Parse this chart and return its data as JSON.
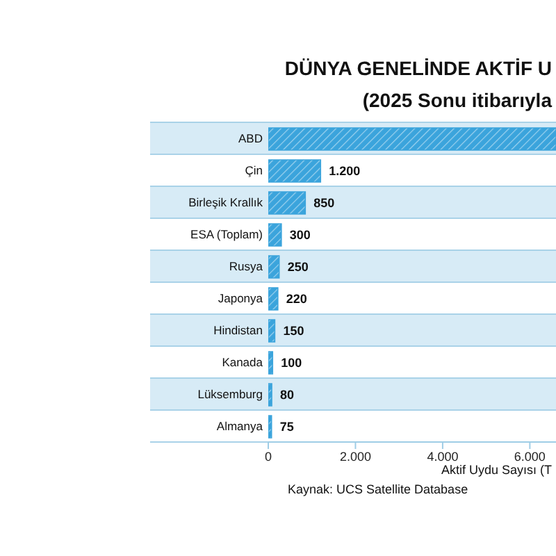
{
  "chart_data": {
    "type": "bar",
    "orientation": "horizontal",
    "title": "DÜNYA GENELİNDE AKTİF U",
    "subtitle": "(2025 Sonu itibarıyla",
    "xlabel": "Aktif Uydu Sayısı (T",
    "annotations": [
      "Kaynak: UCS Satellite Database"
    ],
    "categories": [
      "ABD",
      "Çin",
      "Birleşik Krallık",
      "ESA (Toplam)",
      "Rusya",
      "Japonya",
      "Hindistan",
      "Kanada",
      "Lüksemburg",
      "Almanya"
    ],
    "values": [
      6600,
      1200,
      850,
      300,
      250,
      220,
      150,
      100,
      80,
      75
    ],
    "value_labels": [
      null,
      "1.200",
      "850",
      "300",
      "250",
      "220",
      "150",
      "100",
      "80",
      "75"
    ],
    "color": "#3ba4dc",
    "xlim": [
      0,
      6600
    ],
    "xticks": [
      0,
      {
        "value": 2000,
        "label": "2.000"
      },
      {
        "value": 4000,
        "label": "4.000"
      },
      {
        "value": 6000,
        "label": "6.000"
      }
    ],
    "grid": "y"
  }
}
